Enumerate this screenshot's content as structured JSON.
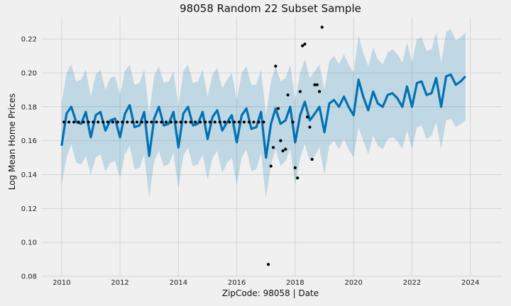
{
  "chart_data": {
    "type": "line",
    "title": "98058 Random 22 Subset Sample",
    "xlabel": "ZipCode: 98058 | Date",
    "ylabel": "Log Mean Home Prices",
    "xlim": [
      2009.3,
      2025.1
    ],
    "ylim": [
      0.08,
      0.233
    ],
    "xticks": [
      2010,
      2012,
      2014,
      2016,
      2018,
      2020,
      2022,
      2024
    ],
    "yticks": [
      0.08,
      0.1,
      0.12,
      0.14,
      0.16,
      0.18,
      0.2,
      0.22
    ],
    "grid": true,
    "colors": {
      "forecast_line": "#0072B2",
      "uncertainty_band": "#0072B2",
      "observed_points": "#000000"
    },
    "forecast": {
      "x": [
        2010.0,
        2010.17,
        2010.33,
        2010.5,
        2010.67,
        2010.83,
        2011.0,
        2011.17,
        2011.33,
        2011.5,
        2011.67,
        2011.83,
        2012.0,
        2012.17,
        2012.33,
        2012.5,
        2012.67,
        2012.83,
        2013.0,
        2013.17,
        2013.33,
        2013.5,
        2013.67,
        2013.83,
        2014.0,
        2014.17,
        2014.33,
        2014.5,
        2014.67,
        2014.83,
        2015.0,
        2015.17,
        2015.33,
        2015.5,
        2015.67,
        2015.83,
        2016.0,
        2016.17,
        2016.33,
        2016.5,
        2016.67,
        2016.83,
        2017.0,
        2017.17,
        2017.33,
        2017.5,
        2017.67,
        2017.83,
        2018.0,
        2018.17,
        2018.33,
        2018.5,
        2018.67,
        2018.83,
        2019.0,
        2019.17,
        2019.33,
        2019.5,
        2019.67,
        2019.83,
        2020.0,
        2020.17,
        2020.33,
        2020.5,
        2020.67,
        2020.83,
        2021.0,
        2021.17,
        2021.33,
        2021.5,
        2021.67,
        2021.83,
        2022.0,
        2022.17,
        2022.33,
        2022.5,
        2022.67,
        2022.83,
        2023.0,
        2023.17,
        2023.33,
        2023.5,
        2023.67,
        2023.83
      ],
      "yhat": [
        0.157,
        0.176,
        0.18,
        0.171,
        0.17,
        0.177,
        0.162,
        0.175,
        0.177,
        0.166,
        0.172,
        0.173,
        0.162,
        0.176,
        0.181,
        0.168,
        0.169,
        0.177,
        0.151,
        0.173,
        0.18,
        0.169,
        0.17,
        0.177,
        0.156,
        0.176,
        0.18,
        0.169,
        0.17,
        0.177,
        0.161,
        0.174,
        0.178,
        0.166,
        0.171,
        0.175,
        0.159,
        0.175,
        0.179,
        0.167,
        0.168,
        0.177,
        0.15,
        0.17,
        0.179,
        0.17,
        0.172,
        0.18,
        0.159,
        0.175,
        0.183,
        0.172,
        0.176,
        0.18,
        0.165,
        0.182,
        0.184,
        0.18,
        0.186,
        0.18,
        0.175,
        0.196,
        0.186,
        0.178,
        0.189,
        0.182,
        0.18,
        0.187,
        0.188,
        0.185,
        0.18,
        0.192,
        0.18,
        0.194,
        0.195,
        0.187,
        0.188,
        0.197,
        0.18,
        0.198,
        0.199,
        0.193,
        0.195,
        0.198
      ],
      "lower": [
        0.134,
        0.15,
        0.158,
        0.147,
        0.146,
        0.151,
        0.14,
        0.15,
        0.152,
        0.142,
        0.147,
        0.148,
        0.138,
        0.152,
        0.157,
        0.143,
        0.144,
        0.152,
        0.126,
        0.148,
        0.154,
        0.145,
        0.146,
        0.153,
        0.132,
        0.151,
        0.156,
        0.145,
        0.146,
        0.152,
        0.137,
        0.15,
        0.154,
        0.141,
        0.147,
        0.15,
        0.134,
        0.15,
        0.155,
        0.142,
        0.143,
        0.153,
        0.126,
        0.146,
        0.155,
        0.145,
        0.148,
        0.155,
        0.134,
        0.15,
        0.158,
        0.148,
        0.151,
        0.156,
        0.14,
        0.157,
        0.16,
        0.155,
        0.161,
        0.155,
        0.15,
        0.168,
        0.16,
        0.152,
        0.163,
        0.157,
        0.155,
        0.161,
        0.162,
        0.16,
        0.155,
        0.166,
        0.155,
        0.168,
        0.169,
        0.161,
        0.163,
        0.171,
        0.155,
        0.172,
        0.173,
        0.168,
        0.17,
        0.172
      ],
      "upper": [
        0.182,
        0.2,
        0.205,
        0.195,
        0.196,
        0.202,
        0.186,
        0.199,
        0.202,
        0.19,
        0.197,
        0.198,
        0.187,
        0.201,
        0.205,
        0.193,
        0.194,
        0.202,
        0.176,
        0.198,
        0.204,
        0.194,
        0.195,
        0.201,
        0.18,
        0.201,
        0.205,
        0.194,
        0.195,
        0.202,
        0.186,
        0.199,
        0.203,
        0.191,
        0.196,
        0.2,
        0.184,
        0.2,
        0.204,
        0.193,
        0.193,
        0.202,
        0.175,
        0.195,
        0.204,
        0.195,
        0.197,
        0.205,
        0.184,
        0.2,
        0.208,
        0.197,
        0.201,
        0.205,
        0.19,
        0.207,
        0.21,
        0.205,
        0.211,
        0.205,
        0.2,
        0.222,
        0.212,
        0.204,
        0.215,
        0.208,
        0.205,
        0.212,
        0.214,
        0.211,
        0.206,
        0.218,
        0.206,
        0.22,
        0.221,
        0.213,
        0.214,
        0.224,
        0.206,
        0.224,
        0.226,
        0.219,
        0.221,
        0.224
      ]
    },
    "observed": {
      "x": [
        2010.08,
        2010.25,
        2010.42,
        2010.58,
        2010.75,
        2010.92,
        2011.08,
        2011.25,
        2011.42,
        2011.58,
        2011.75,
        2011.92,
        2012.08,
        2012.25,
        2012.42,
        2012.58,
        2012.75,
        2012.92,
        2013.08,
        2013.25,
        2013.42,
        2013.58,
        2013.75,
        2013.92,
        2014.08,
        2014.25,
        2014.42,
        2014.58,
        2014.75,
        2014.92,
        2015.08,
        2015.25,
        2015.42,
        2015.58,
        2015.75,
        2015.92,
        2016.08,
        2016.25,
        2016.42,
        2016.58,
        2016.75,
        2016.92,
        2017.08,
        2017.17,
        2017.25,
        2017.33,
        2017.42,
        2017.5,
        2017.58,
        2017.67,
        2017.75,
        2017.92,
        2018.0,
        2018.08,
        2018.17,
        2018.25,
        2018.33,
        2018.42,
        2018.5,
        2018.58,
        2018.67,
        2018.75,
        2018.83,
        2018.92
      ],
      "y": [
        0.171,
        0.171,
        0.171,
        0.171,
        0.171,
        0.171,
        0.171,
        0.171,
        0.171,
        0.171,
        0.171,
        0.171,
        0.171,
        0.171,
        0.171,
        0.171,
        0.171,
        0.171,
        0.171,
        0.171,
        0.171,
        0.171,
        0.171,
        0.171,
        0.171,
        0.171,
        0.171,
        0.171,
        0.171,
        0.171,
        0.171,
        0.171,
        0.171,
        0.171,
        0.171,
        0.171,
        0.171,
        0.171,
        0.171,
        0.171,
        0.171,
        0.171,
        0.087,
        0.145,
        0.156,
        0.204,
        0.179,
        0.16,
        0.154,
        0.155,
        0.187,
        0.171,
        0.144,
        0.138,
        0.189,
        0.216,
        0.217,
        0.174,
        0.168,
        0.149,
        0.193,
        0.193,
        0.189,
        0.227
      ]
    }
  }
}
